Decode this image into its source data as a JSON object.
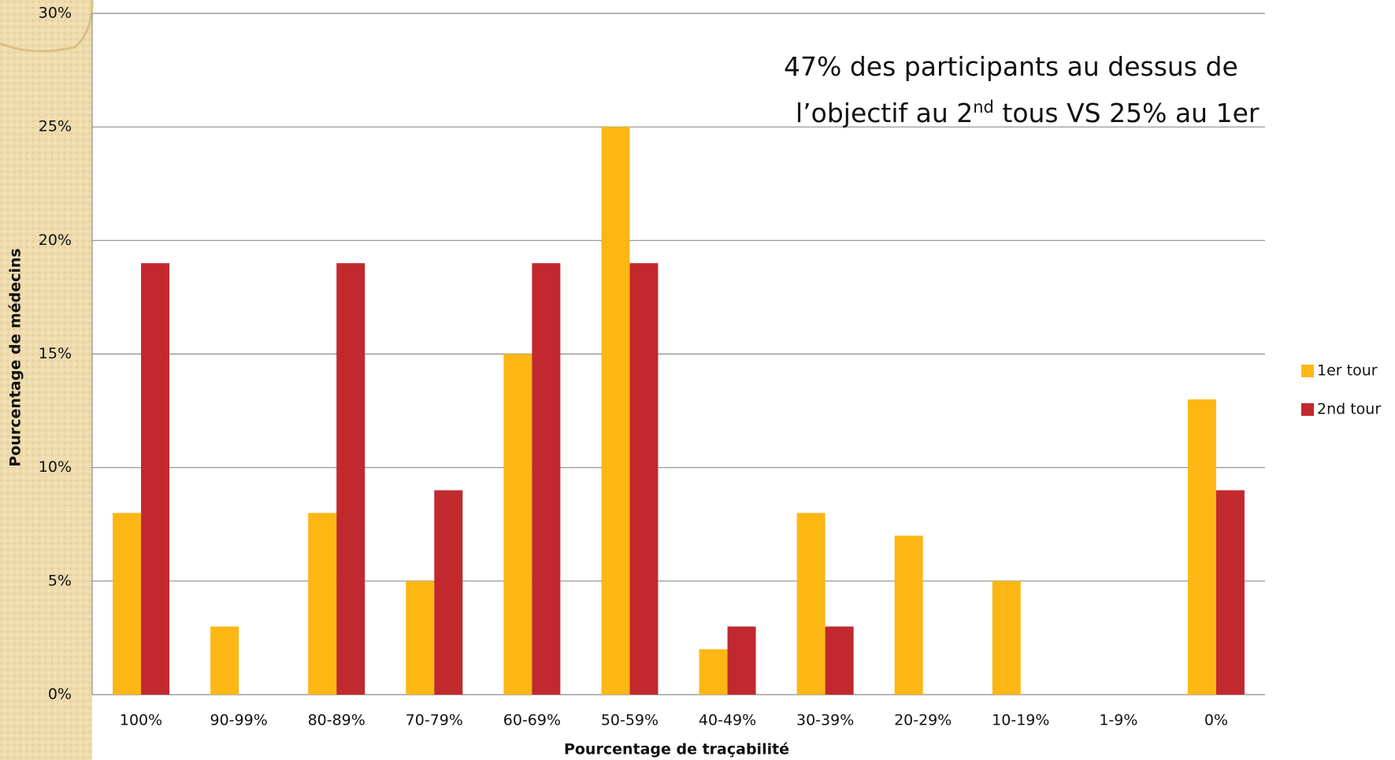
{
  "chart_data": {
    "type": "bar",
    "categories": [
      "100%",
      "90-99%",
      "80-89%",
      "70-79%",
      "60-69%",
      "50-59%",
      "40-49%",
      "30-39%",
      "20-29%",
      "10-19%",
      "1-9%",
      "0%"
    ],
    "series": [
      {
        "name": "1er tour",
        "color": "#FDB714",
        "values": [
          8,
          3,
          8,
          5,
          15,
          25,
          2,
          8,
          7,
          5,
          0,
          13
        ]
      },
      {
        "name": "2nd tour",
        "color": "#C1292E",
        "values": [
          19,
          0,
          19,
          9,
          19,
          19,
          3,
          3,
          0,
          0,
          0,
          9
        ]
      }
    ],
    "ylim": [
      0,
      30
    ],
    "yticks": [
      {
        "value": 0,
        "label": "0%"
      },
      {
        "value": 5,
        "label": "5%"
      },
      {
        "value": 10,
        "label": "10%"
      },
      {
        "value": 15,
        "label": "15%"
      },
      {
        "value": 20,
        "label": "20%"
      },
      {
        "value": 25,
        "label": "25%"
      },
      {
        "value": 30,
        "label": "30%"
      }
    ],
    "grid": true,
    "legend": "right",
    "xlabel": "Pourcentage de traçabilité",
    "ylabel": "Pourcentage de médecins",
    "annotation": [
      [
        "47% des participants au dessus de"
      ],
      [
        "l’objectif au 2",
        "nd",
        " tous VS 25% au 1er"
      ]
    ]
  }
}
